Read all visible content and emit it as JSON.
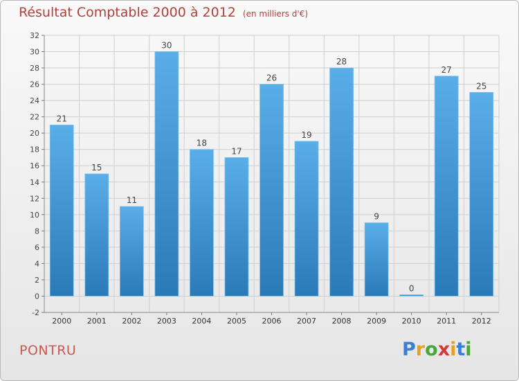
{
  "header": {
    "title": "Résultat Comptable 2000 à 2012",
    "unit": "(en milliers d'€)"
  },
  "footer": {
    "commune": "PONTRU",
    "logo_letters": [
      "P",
      "r",
      "o",
      "x",
      "i",
      "t",
      "i"
    ],
    "logo_colors": [
      "#3a7fd1",
      "#e6a21e",
      "#46a83a",
      "#d23a3a",
      "#e6a21e",
      "#3a7fd1",
      "#46a83a"
    ]
  },
  "colors": {
    "bar_top": "#5aaee8",
    "bar_bottom": "#2a7ab8",
    "title": "#b3413a",
    "grid": "#cfcfcf"
  },
  "chart_data": {
    "type": "bar",
    "title": "Résultat Comptable 2000 à 2012",
    "subtitle": "(en milliers d'€)",
    "xlabel": "",
    "ylabel": "",
    "categories": [
      "2000",
      "2001",
      "2002",
      "2003",
      "2004",
      "2005",
      "2006",
      "2007",
      "2008",
      "2009",
      "2010",
      "2011",
      "2012"
    ],
    "values": [
      21,
      15,
      11,
      30,
      18,
      17,
      26,
      19,
      28,
      9,
      0,
      27,
      25
    ],
    "ylim": [
      -2,
      32
    ],
    "yticks": [
      -2,
      0,
      2,
      4,
      6,
      8,
      10,
      12,
      14,
      16,
      18,
      20,
      22,
      24,
      26,
      28,
      30,
      32
    ],
    "grid": true,
    "legend": "none"
  }
}
